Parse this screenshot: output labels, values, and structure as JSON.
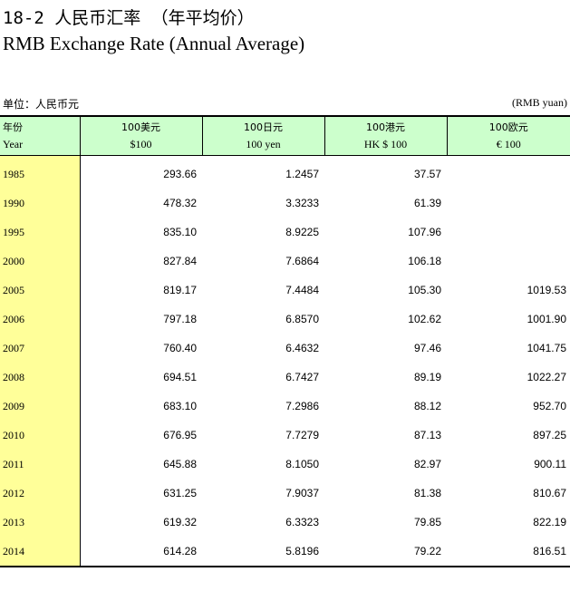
{
  "title_cn": "18-2  人民币汇率 （年平均价）",
  "title_en": "RMB Exchange Rate (Annual Average)",
  "unit_cn": "单位：人民币元",
  "unit_en": "(RMB yuan)",
  "table": {
    "headers": [
      {
        "cn": "年份",
        "en": "Year"
      },
      {
        "cn": "100美元",
        "en": "$100"
      },
      {
        "cn": "100日元",
        "en": "100 yen"
      },
      {
        "cn": "100港元",
        "en": "HK $ 100"
      },
      {
        "cn": "100欧元",
        "en": "€ 100"
      }
    ],
    "rows": [
      {
        "year": "1985",
        "usd": "293.66",
        "jpy": "1.2457",
        "hkd": "37.57",
        "eur": ""
      },
      {
        "year": "1990",
        "usd": "478.32",
        "jpy": "3.3233",
        "hkd": "61.39",
        "eur": ""
      },
      {
        "year": "1995",
        "usd": "835.10",
        "jpy": "8.9225",
        "hkd": "107.96",
        "eur": ""
      },
      {
        "year": "2000",
        "usd": "827.84",
        "jpy": "7.6864",
        "hkd": "106.18",
        "eur": ""
      },
      {
        "year": "2005",
        "usd": "819.17",
        "jpy": "7.4484",
        "hkd": "105.30",
        "eur": "1019.53"
      },
      {
        "year": "2006",
        "usd": "797.18",
        "jpy": "6.8570",
        "hkd": "102.62",
        "eur": "1001.90"
      },
      {
        "year": "2007",
        "usd": "760.40",
        "jpy": "6.4632",
        "hkd": "97.46",
        "eur": "1041.75"
      },
      {
        "year": "2008",
        "usd": "694.51",
        "jpy": "6.7427",
        "hkd": "89.19",
        "eur": "1022.27"
      },
      {
        "year": "2009",
        "usd": "683.10",
        "jpy": "7.2986",
        "hkd": "88.12",
        "eur": "952.70"
      },
      {
        "year": "2010",
        "usd": "676.95",
        "jpy": "7.7279",
        "hkd": "87.13",
        "eur": "897.25"
      },
      {
        "year": "2011",
        "usd": "645.88",
        "jpy": "8.1050",
        "hkd": "82.97",
        "eur": "900.11"
      },
      {
        "year": "2012",
        "usd": "631.25",
        "jpy": "7.9037",
        "hkd": "81.38",
        "eur": "810.67"
      },
      {
        "year": "2013",
        "usd": "619.32",
        "jpy": "6.3323",
        "hkd": "79.85",
        "eur": "822.19"
      },
      {
        "year": "2014",
        "usd": "614.28",
        "jpy": "5.8196",
        "hkd": "79.22",
        "eur": "816.51"
      }
    ]
  },
  "colors": {
    "header_bg": "#ccffcc",
    "year_bg": "#ffff99"
  }
}
